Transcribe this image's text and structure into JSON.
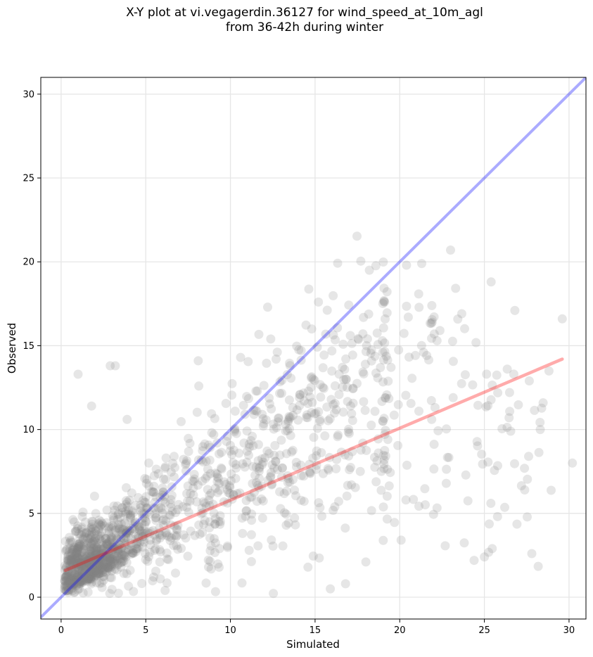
{
  "chart_data": {
    "type": "scatter",
    "title_line1": "X-Y plot at vi.vegagerdin.36127 for wind_speed_at_10m_agl",
    "title_line2": "from 36-42h during winter",
    "xlabel": "Simulated",
    "ylabel": "Observed",
    "xlim": [
      -1.2,
      31
    ],
    "ylim": [
      -1.3,
      31
    ],
    "xticks": [
      0,
      5,
      10,
      15,
      20,
      25,
      30
    ],
    "yticks": [
      0,
      5,
      10,
      15,
      20,
      25,
      30
    ],
    "grid": true,
    "point_color": "#808080",
    "identity_line": {
      "color": "#0000ff",
      "from": [
        -1.2,
        -1.2
      ],
      "to": [
        31,
        31
      ]
    },
    "fit_line": {
      "color": "#ff0000",
      "from": [
        0.25,
        1.6
      ],
      "to": [
        29.6,
        14.2
      ]
    },
    "points_note": "",
    "highlighted_points": {
      "x": [
        1.0,
        2.9,
        3.2,
        1.8,
        12.2,
        14.8,
        15.2,
        23.0,
        20.4,
        21.3,
        25.4,
        26.8,
        29.6,
        30.2,
        28.3,
        27.8,
        25.0,
        15.9,
        16.8,
        18.0,
        12.7,
        10.6,
        8.1,
        6.2,
        3.9
      ],
      "y": [
        13.3,
        13.8,
        13.8,
        11.4,
        17.3,
        16.0,
        17.6,
        20.7,
        19.8,
        19.9,
        18.8,
        17.1,
        16.6,
        8.0,
        10.0,
        2.6,
        2.4,
        0.5,
        0.8,
        2.1,
        14.2,
        14.3,
        14.1,
        8.3,
        10.6
      ]
    }
  }
}
